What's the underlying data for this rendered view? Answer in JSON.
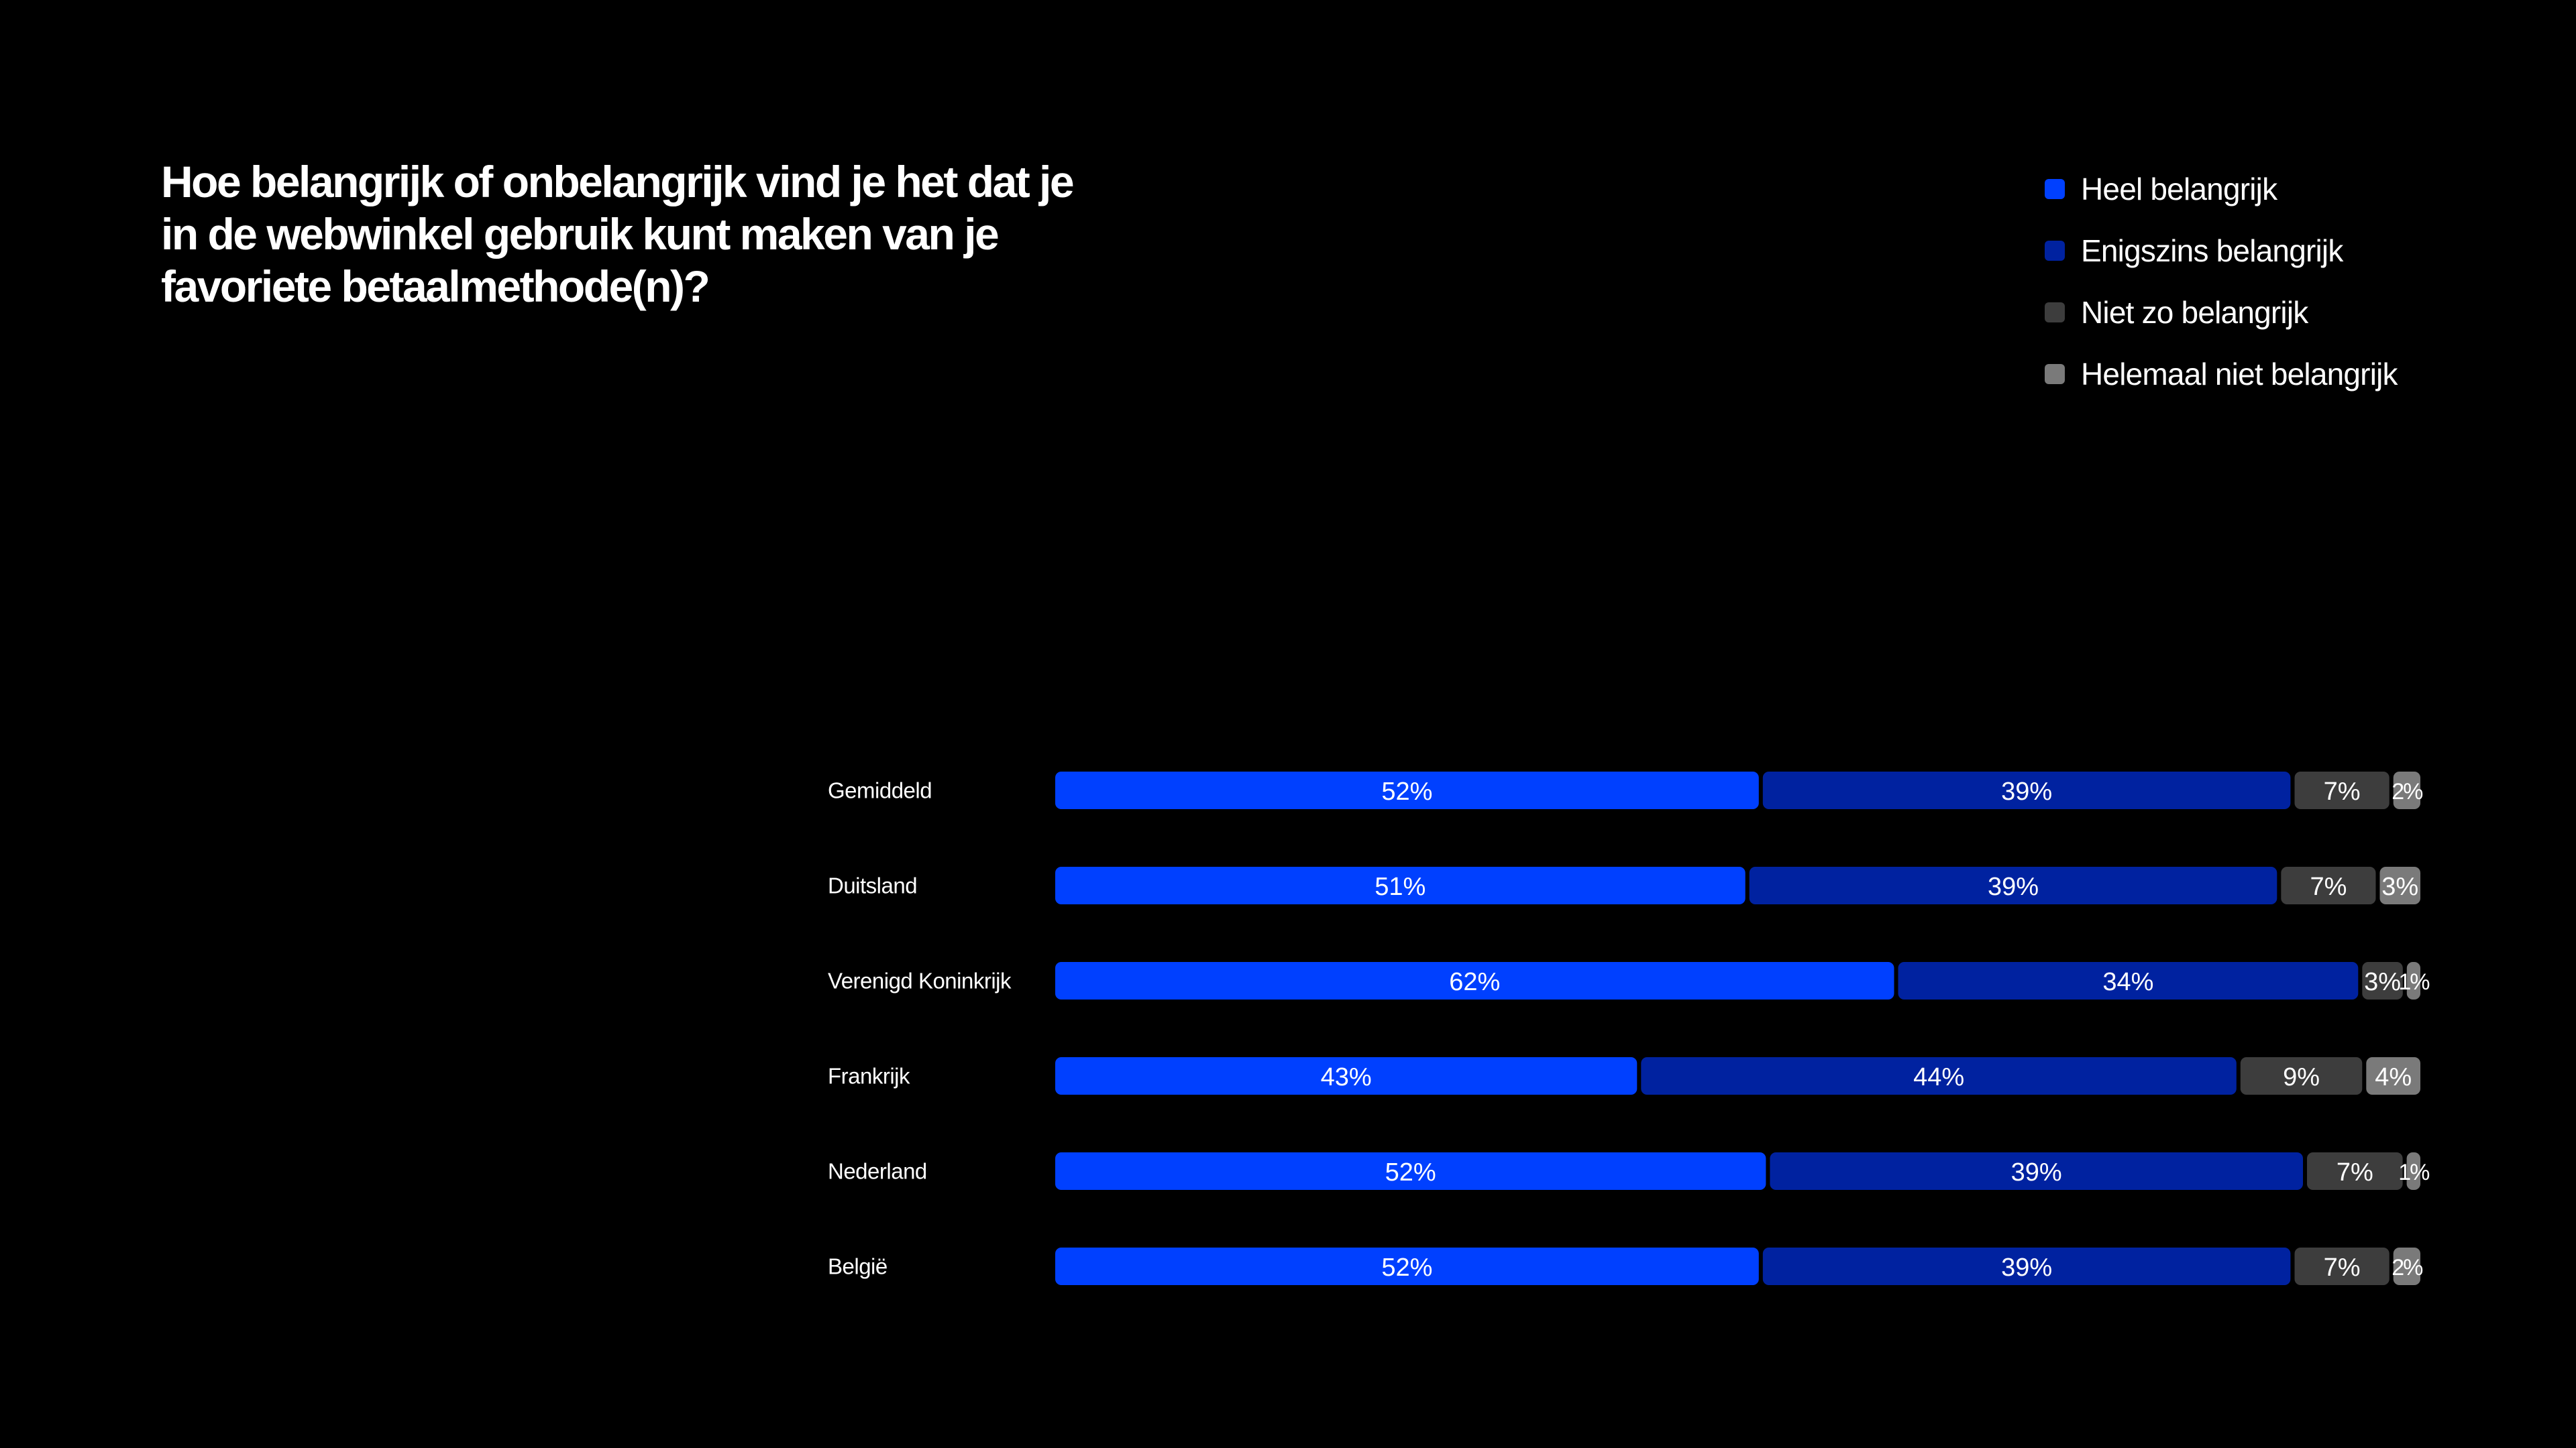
{
  "chart_data": {
    "type": "bar",
    "orientation": "horizontal",
    "stacked": true,
    "normalized": true,
    "title": "Hoe belangrijk of onbelangrijk vind je het dat je in de webwinkel gebruik kunt maken van je favoriete betaalmethode(n)?",
    "categories": [
      "Gemiddeld",
      "Duitsland",
      "Verenigd Koninkrijk",
      "Frankrijk",
      "Nederland",
      "België"
    ],
    "series": [
      {
        "name": "Heel belangrijk",
        "color": "#0040ff",
        "values": [
          52,
          51,
          62,
          43,
          52,
          52
        ]
      },
      {
        "name": "Enigszins belangrijk",
        "color": "#0022a0",
        "values": [
          39,
          39,
          34,
          44,
          39,
          39
        ]
      },
      {
        "name": "Niet zo belangrijk",
        "color": "#3d3d3d",
        "values": [
          7,
          7,
          3,
          9,
          7,
          7
        ]
      },
      {
        "name": "Helemaal niet belangrijk",
        "color": "#7a7a7a",
        "values": [
          2,
          3,
          1,
          4,
          1,
          2
        ]
      }
    ],
    "value_suffix": "%",
    "legend": "top-right",
    "grid": false
  }
}
